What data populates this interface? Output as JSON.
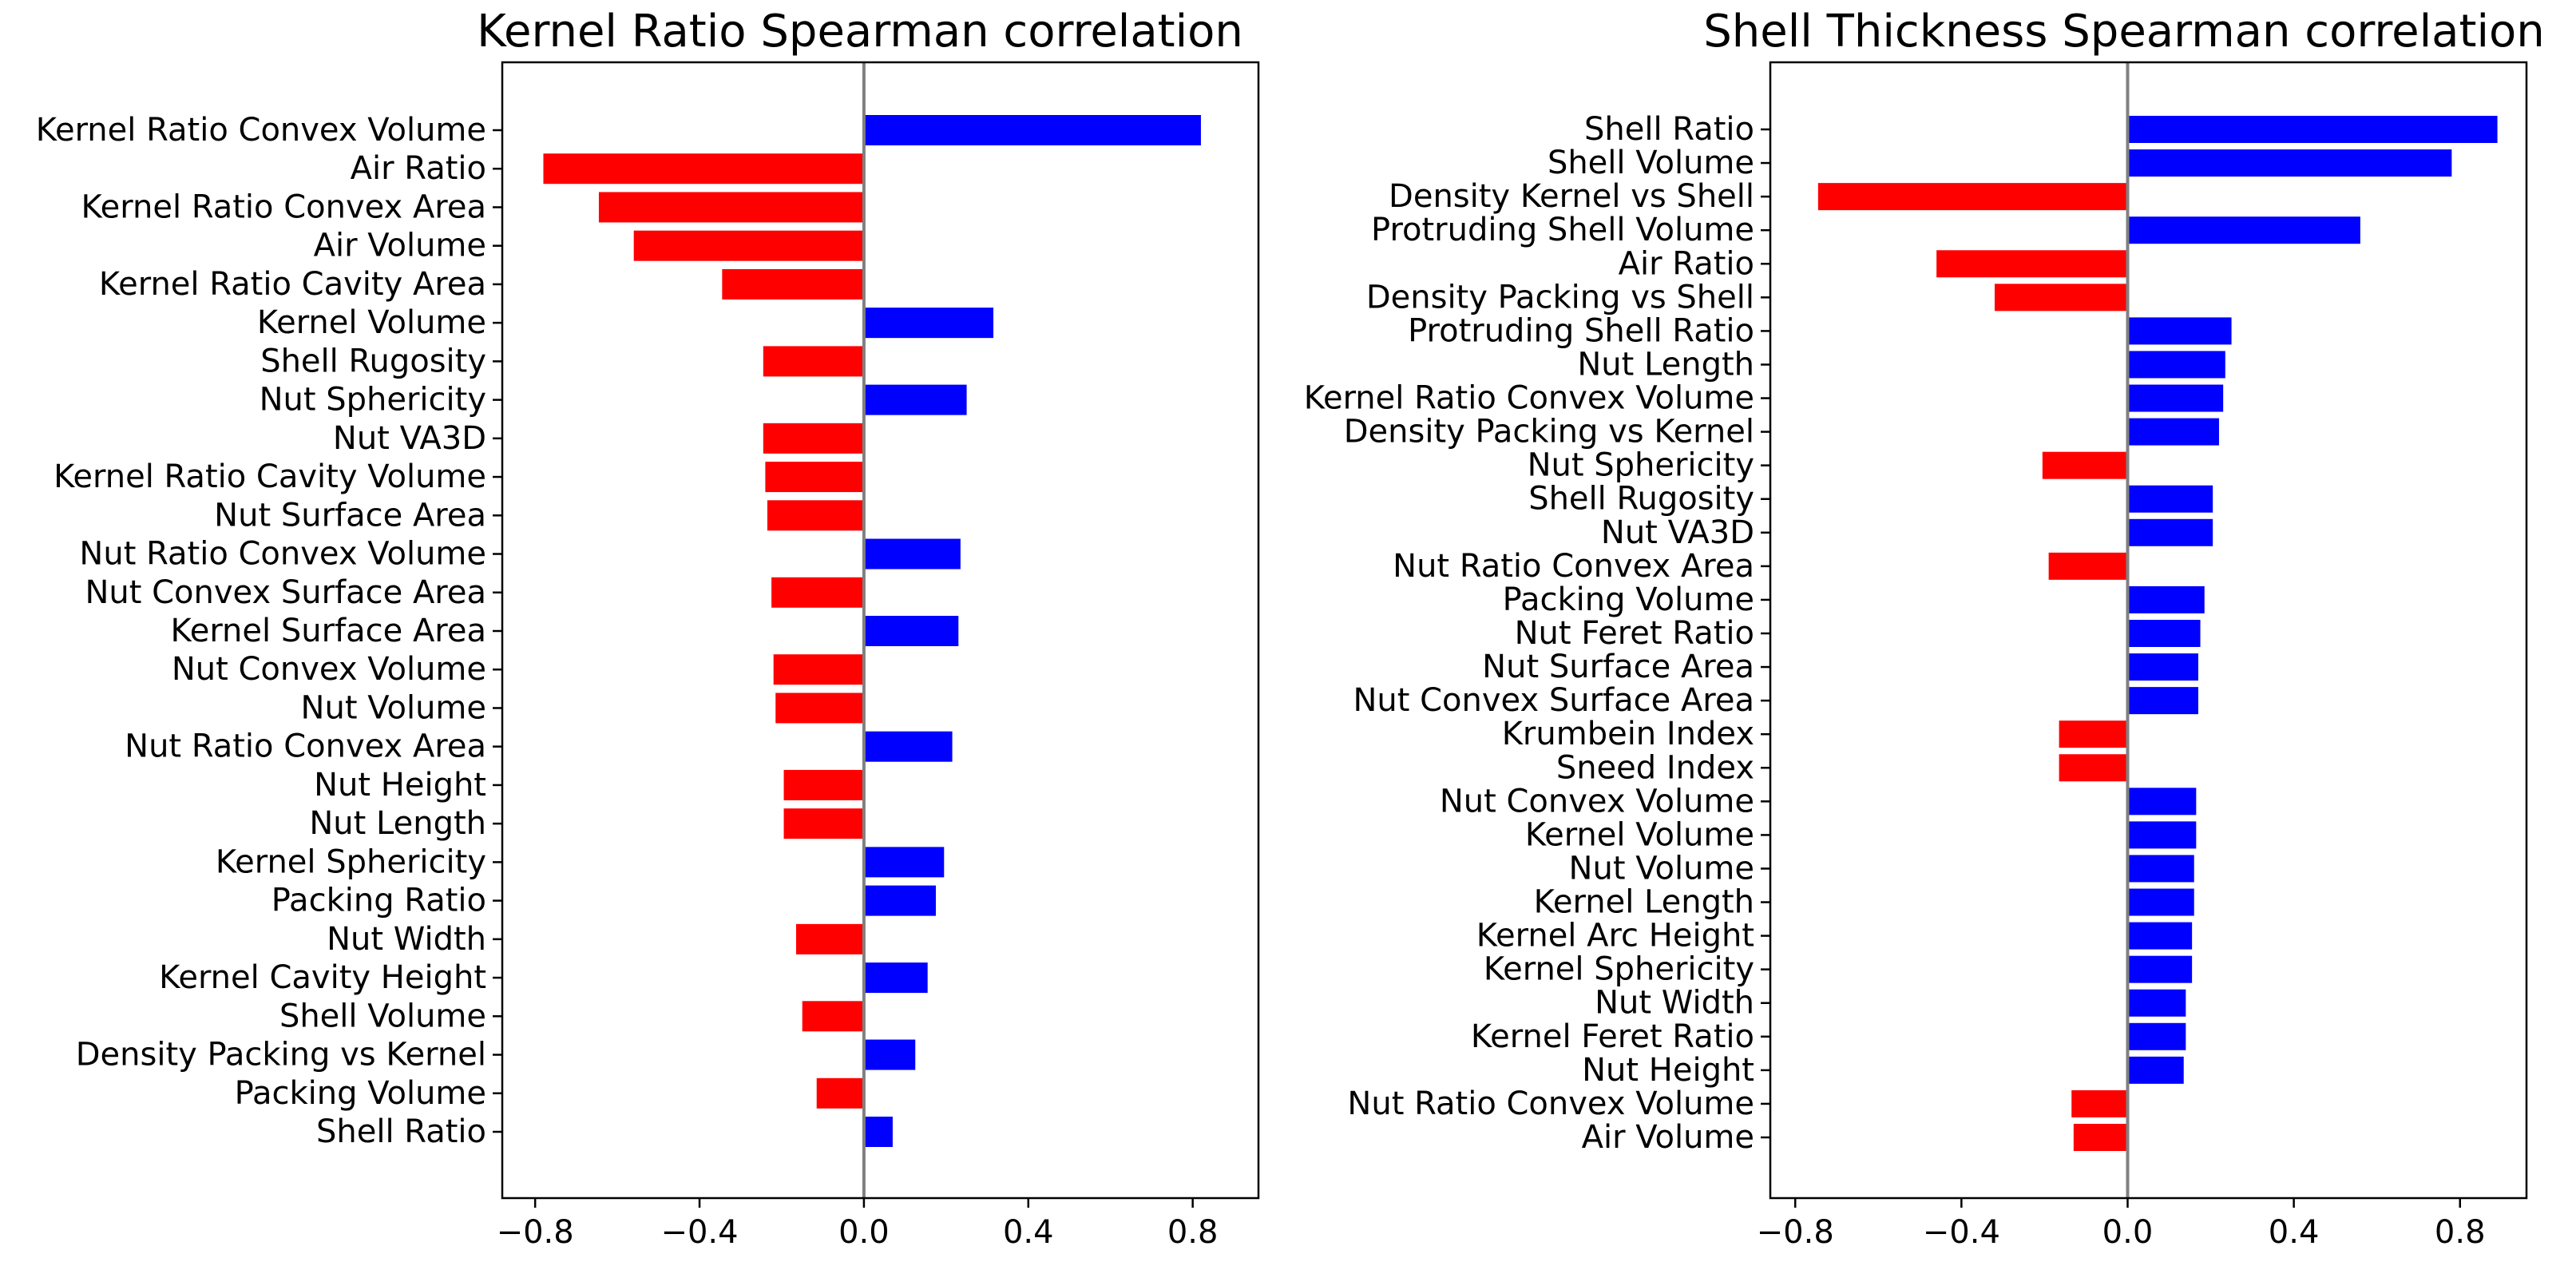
{
  "chart_data": [
    {
      "type": "bar",
      "orientation": "horizontal",
      "title": "Kernel Ratio Spearman correlation",
      "xlabel": "",
      "ylabel": "",
      "xlim": [
        -0.88,
        0.96
      ],
      "xticks": [
        -0.8,
        -0.4,
        0.0,
        0.4,
        0.8
      ],
      "xtick_labels": [
        "−0.8",
        "−0.4",
        "0.0",
        "0.4",
        "0.8"
      ],
      "zero_line": true,
      "grid": false,
      "positive_color": "#0000ff",
      "negative_color": "#ff0000",
      "categories": [
        "Kernel Ratio Convex Volume",
        "Air Ratio",
        "Kernel Ratio Convex Area",
        "Air Volume",
        "Kernel Ratio Cavity Area",
        "Kernel Volume",
        "Shell Rugosity",
        "Nut Sphericity",
        "Nut VA3D",
        "Kernel Ratio Cavity Volume",
        "Nut Surface Area",
        "Nut Ratio Convex Volume",
        "Nut Convex Surface Area",
        "Kernel Surface Area",
        "Nut Convex Volume",
        "Nut Volume",
        "Nut Ratio Convex Area",
        "Nut Height",
        "Nut Length",
        "Kernel Sphericity",
        "Packing Ratio",
        "Nut Width",
        "Kernel Cavity Height",
        "Shell Volume",
        "Density Packing vs Kernel",
        "Packing Volume",
        "Shell Ratio"
      ],
      "values": [
        0.82,
        -0.78,
        -0.645,
        -0.56,
        -0.345,
        0.315,
        -0.245,
        0.25,
        -0.245,
        -0.24,
        -0.235,
        0.235,
        -0.225,
        0.23,
        -0.22,
        -0.215,
        0.215,
        -0.195,
        -0.195,
        0.195,
        0.175,
        -0.165,
        0.155,
        -0.15,
        0.125,
        -0.115,
        0.07
      ]
    },
    {
      "type": "bar",
      "orientation": "horizontal",
      "title": "Shell Thickness Spearman correlation",
      "xlabel": "",
      "ylabel": "",
      "xlim": [
        -0.86,
        0.96
      ],
      "xticks": [
        -0.8,
        -0.4,
        0.0,
        0.4,
        0.8
      ],
      "xtick_labels": [
        "−0.8",
        "−0.4",
        "0.0",
        "0.4",
        "0.8"
      ],
      "zero_line": true,
      "grid": false,
      "positive_color": "#0000ff",
      "negative_color": "#ff0000",
      "categories": [
        "Shell Ratio",
        "Shell Volume",
        "Density Kernel vs Shell",
        "Protruding Shell Volume",
        "Air Ratio",
        "Density Packing vs Shell",
        "Protruding Shell Ratio",
        "Nut Length",
        "Kernel Ratio Convex Volume",
        "Density Packing vs Kernel",
        "Nut Sphericity",
        "Shell Rugosity",
        "Nut VA3D",
        "Nut Ratio Convex Area",
        "Packing Volume",
        "Nut Feret Ratio",
        "Nut Surface Area",
        "Nut Convex Surface Area",
        "Krumbein Index",
        "Sneed Index",
        "Nut Convex Volume",
        "Kernel Volume",
        "Nut Volume",
        "Kernel Length",
        "Kernel Arc Height",
        "Kernel Sphericity",
        "Nut Width",
        "Kernel Feret Ratio",
        "Nut Height",
        "Nut Ratio Convex Volume",
        "Air Volume"
      ],
      "values": [
        0.89,
        0.78,
        -0.745,
        0.56,
        -0.46,
        -0.32,
        0.25,
        0.235,
        0.23,
        0.22,
        -0.205,
        0.205,
        0.205,
        -0.19,
        0.185,
        0.175,
        0.17,
        0.17,
        -0.165,
        -0.165,
        0.165,
        0.165,
        0.16,
        0.16,
        0.155,
        0.155,
        0.14,
        0.14,
        0.135,
        -0.135,
        -0.13
      ]
    }
  ]
}
